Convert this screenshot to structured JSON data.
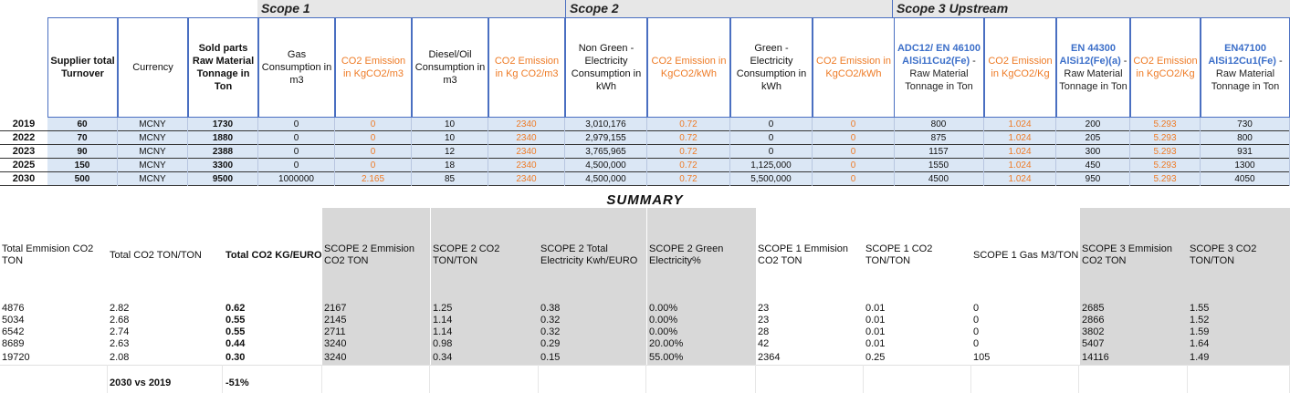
{
  "scopes": {
    "scope1": "Scope 1",
    "scope2": "Scope 2",
    "scope3": "Scope 3 Upstream"
  },
  "headers": [
    {
      "key": "turnover",
      "label": "Supplier total Turnover",
      "style": "bold"
    },
    {
      "key": "currency",
      "label": "Currency",
      "style": "plain"
    },
    {
      "key": "sold",
      "label": "Sold parts Raw Material Tonnage in Ton",
      "style": "bold"
    },
    {
      "key": "gas",
      "label": "Gas Consumption in m3",
      "style": "plain"
    },
    {
      "key": "gas_co2",
      "label": "CO2 Emission in KgCO2/m3",
      "style": "orange"
    },
    {
      "key": "diesel",
      "label": "Diesel/Oil Consumption in m3",
      "style": "plain"
    },
    {
      "key": "diesel_co2",
      "label": "CO2 Emission in Kg CO2/m3",
      "style": "orange"
    },
    {
      "key": "nongreen",
      "label": "Non Green - Electricity Consumption in kWh",
      "style": "plain"
    },
    {
      "key": "nongreen_co2",
      "label": "CO2 Emission in KgCO2/kWh",
      "style": "orange"
    },
    {
      "key": "green",
      "label": "Green -Electricity Consumption in kWh",
      "style": "plain"
    },
    {
      "key": "green_co2",
      "label": "CO2 Emission in KgCO2/kWh",
      "style": "orange"
    },
    {
      "key": "adc12",
      "label_bold": "ADC12/ EN 46100 AlSi11Cu2(Fe)",
      "label_plain": "- Raw Material Tonnage in Ton",
      "style": "mixed"
    },
    {
      "key": "adc12_co2",
      "label": "CO2 Emission in KgCO2/Kg",
      "style": "orange"
    },
    {
      "key": "en44300",
      "label_bold": "EN 44300 AlSi12(Fe)(a)",
      "label_plain": "- Raw Material Tonnage in Ton",
      "style": "mixed"
    },
    {
      "key": "en44300_co2",
      "label": "CO2 Emission in KgCO2/Kg",
      "style": "orange"
    },
    {
      "key": "en47100",
      "label_bold": "EN47100 AlSi12Cu1(Fe)",
      "label_plain": "- Raw Material Tonnage in Ton",
      "style": "mixed"
    }
  ],
  "rows": [
    {
      "year": "2019",
      "cells": [
        "60",
        "MCNY",
        "1730",
        "0",
        "0",
        "10",
        "2340",
        "3,010,176",
        "0.72",
        "0",
        "0",
        "800",
        "1.024",
        "200",
        "5.293",
        "730"
      ]
    },
    {
      "year": "2022",
      "cells": [
        "70",
        "MCNY",
        "1880",
        "0",
        "0",
        "10",
        "2340",
        "2,979,155",
        "0.72",
        "0",
        "0",
        "875",
        "1.024",
        "205",
        "5.293",
        "800"
      ]
    },
    {
      "year": "2023",
      "cells": [
        "90",
        "MCNY",
        "2388",
        "0",
        "0",
        "12",
        "2340",
        "3,765,965",
        "0.72",
        "0",
        "0",
        "1157",
        "1.024",
        "300",
        "5.293",
        "931"
      ]
    },
    {
      "year": "2025",
      "cells": [
        "150",
        "MCNY",
        "3300",
        "0",
        "0",
        "18",
        "2340",
        "4,500,000",
        "0.72",
        "1,125,000",
        "0",
        "1550",
        "1.024",
        "450",
        "5.293",
        "1300"
      ]
    },
    {
      "year": "2030",
      "cells": [
        "500",
        "MCNY",
        "9500",
        "1000000",
        "2.165",
        "85",
        "2340",
        "4,500,000",
        "0.72",
        "5,500,000",
        "0",
        "4500",
        "1.024",
        "950",
        "5.293",
        "4050"
      ]
    }
  ],
  "summary": {
    "title": "SUMMARY",
    "headers": [
      "Total Emmision CO2 TON",
      "Total CO2 TON/TON",
      "Total CO2 KG/EURO",
      "SCOPE 2 Emmision CO2 TON",
      "SCOPE 2 CO2 TON/TON",
      "SCOPE 2 Total Electricity Kwh/EURO",
      "SCOPE 2 Green Electricity%",
      "SCOPE 1 Emmision CO2 TON",
      "SCOPE 1 CO2 TON/TON",
      "SCOPE 1 Gas M3/TON",
      "SCOPE 3 Emmision CO2 TON",
      "SCOPE 3 CO2 TON/TON"
    ],
    "rows": [
      [
        "4876",
        "2.82",
        "0.62",
        "2167",
        "1.25",
        "0.38",
        "0.00%",
        "23",
        "0.01",
        "0",
        "2685",
        "1.55"
      ],
      [
        "5034",
        "2.68",
        "0.55",
        "2145",
        "1.14",
        "0.32",
        "0.00%",
        "23",
        "0.01",
        "0",
        "2866",
        "1.52"
      ],
      [
        "6542",
        "2.74",
        "0.55",
        "2711",
        "1.14",
        "0.32",
        "0.00%",
        "28",
        "0.01",
        "0",
        "3802",
        "1.59"
      ],
      [
        "8689",
        "2.63",
        "0.44",
        "3240",
        "0.98",
        "0.29",
        "20.00%",
        "42",
        "0.01",
        "0",
        "5407",
        "1.64"
      ],
      [
        "19720",
        "2.08",
        "0.30",
        "3240",
        "0.34",
        "0.15",
        "55.00%",
        "2364",
        "0.25",
        "105",
        "14116",
        "1.49"
      ]
    ],
    "compare_label": "2030 vs 2019",
    "compare_value": "-51%"
  }
}
